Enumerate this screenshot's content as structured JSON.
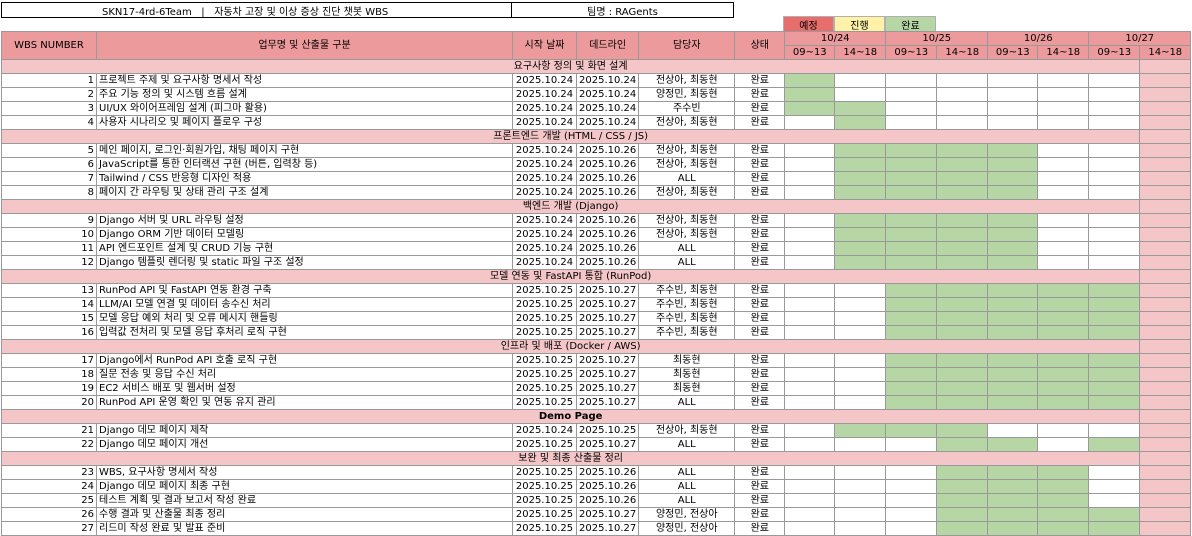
{
  "title": "SKN17-4rd-6Team   |   자동차 고장 및 이상 증상 진단 챗봇 WBS",
  "team": "팀명 : RAGents",
  "legend": [
    {
      "label": "예정",
      "color": "#e86d6d"
    },
    {
      "label": "진행",
      "color": "#fff2a8"
    },
    {
      "label": "완료",
      "color": "#b7d6a6"
    }
  ],
  "headers": {
    "wbs": "WBS NUMBER",
    "task": "업무명 및 산출물 구분",
    "start": "시작 날짜",
    "deadline": "데드라인",
    "owner": "담당자",
    "status": "상태",
    "dates": [
      "10/24",
      "10/25",
      "10/26",
      "10/27"
    ],
    "slots": [
      "09~13",
      "14~18",
      "09~13",
      "14~18",
      "09~13",
      "14~18",
      "09~13",
      "14~18"
    ]
  },
  "colors": {
    "header": "#ec9a9c",
    "section": "#f4c6c7",
    "done": "#b7d6a6"
  },
  "sections": [
    {
      "title": "요구사항 정의 및 화면 설계",
      "rows": [
        {
          "no": "1",
          "task": "프로젝트 주제 및 요구사항 명세서 작성",
          "start": "2025.10.24",
          "end": "2025.10.24",
          "owner": "전상아, 최동현",
          "status": "완료",
          "g": [
            0
          ]
        },
        {
          "no": "2",
          "task": "주요 기능 정의 및 시스템 흐름 설계",
          "start": "2025.10.24",
          "end": "2025.10.24",
          "owner": "양정민, 최동현",
          "status": "완료",
          "g": [
            0
          ]
        },
        {
          "no": "3",
          "task": "UI/UX 와이어프레임 설계 (피그마 활용)",
          "start": "2025.10.24",
          "end": "2025.10.24",
          "owner": "주수빈",
          "status": "완료",
          "g": [
            0,
            1
          ]
        },
        {
          "no": "4",
          "task": "사용자 시나리오 및 페이지 플로우 구성",
          "start": "2025.10.24",
          "end": "2025.10.24",
          "owner": "전상아, 최동현",
          "status": "완료",
          "g": [
            1
          ]
        }
      ]
    },
    {
      "title": "프론트엔드 개발 (HTML / CSS / JS)",
      "rows": [
        {
          "no": "5",
          "task": "메인 페이지, 로그인·회원가입, 채팅 페이지 구현",
          "start": "2025.10.24",
          "end": "2025.10.26",
          "owner": "전상아, 최동현",
          "status": "완료",
          "g": [
            1,
            2,
            3,
            4
          ]
        },
        {
          "no": "6",
          "task": "JavaScript를 통한 인터랙션 구현 (버튼, 입력창 등)",
          "start": "2025.10.24",
          "end": "2025.10.26",
          "owner": "전상아, 최동현",
          "status": "완료",
          "g": [
            1,
            2,
            3,
            4
          ]
        },
        {
          "no": "7",
          "task": "Tailwind / CSS 반응형 디자인 적용",
          "start": "2025.10.24",
          "end": "2025.10.26",
          "owner": "ALL",
          "status": "완료",
          "g": [
            1,
            2,
            3,
            4
          ]
        },
        {
          "no": "8",
          "task": "페이지 간 라우팅 및 상태 관리 구조 설계",
          "start": "2025.10.24",
          "end": "2025.10.26",
          "owner": "전상아, 최동현",
          "status": "완료",
          "g": [
            1,
            2,
            3,
            4
          ]
        }
      ]
    },
    {
      "title": "백엔드 개발 (Django)",
      "rows": [
        {
          "no": "9",
          "task": "Django 서버 및 URL 라우팅 설정",
          "start": "2025.10.24",
          "end": "2025.10.26",
          "owner": "전상아, 최동현",
          "status": "완료",
          "g": [
            1,
            2,
            3,
            4
          ]
        },
        {
          "no": "10",
          "task": "Django ORM 기반 데이터 모델링",
          "start": "2025.10.24",
          "end": "2025.10.26",
          "owner": "전상아, 최동현",
          "status": "완료",
          "g": [
            1,
            2,
            3,
            4
          ]
        },
        {
          "no": "11",
          "task": "API 엔드포인트 설계 및 CRUD 기능 구현",
          "start": "2025.10.24",
          "end": "2025.10.26",
          "owner": "ALL",
          "status": "완료",
          "g": [
            1,
            2,
            3,
            4
          ]
        },
        {
          "no": "12",
          "task": "Django 템플릿 렌더링 및 static 파일 구조 설정",
          "start": "2025.10.24",
          "end": "2025.10.26",
          "owner": "ALL",
          "status": "완료",
          "g": [
            1,
            2,
            3,
            4
          ]
        }
      ]
    },
    {
      "title": "모델 연동 및 FastAPI 통합 (RunPod)",
      "rows": [
        {
          "no": "13",
          "task": "RunPod API 및 FastAPI 연동 환경 구축",
          "start": "2025.10.25",
          "end": "2025.10.27",
          "owner": "주수빈, 최동현",
          "status": "완료",
          "g": [
            2,
            3,
            4,
            5,
            6
          ]
        },
        {
          "no": "14",
          "task": "LLM/AI 모델 연결 및 데이터 송수신 처리",
          "start": "2025.10.25",
          "end": "2025.10.27",
          "owner": "주수빈, 최동현",
          "status": "완료",
          "g": [
            2,
            3,
            4,
            5,
            6
          ]
        },
        {
          "no": "15",
          "task": "모델 응답 예외 처리 및 오류 메시지 핸들링",
          "start": "2025.10.25",
          "end": "2025.10.27",
          "owner": "주수빈, 최동현",
          "status": "완료",
          "g": [
            2,
            3,
            4,
            5,
            6
          ]
        },
        {
          "no": "16",
          "task": "입력값 전처리 및 모델 응답 후처리 로직 구현",
          "start": "2025.10.25",
          "end": "2025.10.27",
          "owner": "주수빈, 최동현",
          "status": "완료",
          "g": [
            2,
            3,
            4,
            5,
            6
          ]
        }
      ]
    },
    {
      "title": "인프라 및 배포 (Docker / AWS)",
      "rows": [
        {
          "no": "17",
          "task": "Django에서 RunPod API 호출 로직 구현",
          "start": "2025.10.25",
          "end": "2025.10.27",
          "owner": "최동현",
          "status": "완료",
          "g": [
            2,
            3,
            4,
            5,
            6
          ]
        },
        {
          "no": "18",
          "task": "질문 전송 및 응답 수신 처리",
          "start": "2025.10.25",
          "end": "2025.10.27",
          "owner": "최동현",
          "status": "완료",
          "g": [
            2,
            3,
            4,
            5,
            6
          ]
        },
        {
          "no": "19",
          "task": "EC2 서비스 배포 및 웹서버 설정",
          "start": "2025.10.25",
          "end": "2025.10.27",
          "owner": "최동현",
          "status": "완료",
          "g": [
            2,
            3,
            4,
            5,
            6
          ]
        },
        {
          "no": "20",
          "task": "RunPod API 운영 확인 및 연동 유지 관리",
          "start": "2025.10.25",
          "end": "2025.10.27",
          "owner": "ALL",
          "status": "완료",
          "g": [
            2,
            3,
            4,
            5,
            6
          ]
        }
      ]
    },
    {
      "title": "Demo Page",
      "bold": true,
      "rows": [
        {
          "no": "21",
          "task": "Django 데모 페이지 제작",
          "start": "2025.10.24",
          "end": "2025.10.25",
          "owner": "전상아, 최동현",
          "status": "완료",
          "g": [
            1,
            2,
            3
          ]
        },
        {
          "no": "22",
          "task": "Django 데모 페이지 개선",
          "start": "2025.10.25",
          "end": "2025.10.27",
          "owner": "ALL",
          "status": "완료",
          "g": [
            3,
            4,
            6
          ]
        }
      ]
    },
    {
      "title": "보완 및 최종 산출물 정리",
      "rows": [
        {
          "no": "23",
          "task": "WBS, 요구사항 명세서 작성",
          "start": "2025.10.25",
          "end": "2025.10.26",
          "owner": "ALL",
          "status": "완료",
          "g": [
            3,
            4,
            5
          ]
        },
        {
          "no": "24",
          "task": "Django 데모 페이지 최종 구현",
          "start": "2025.10.25",
          "end": "2025.10.26",
          "owner": "ALL",
          "status": "완료",
          "g": [
            3,
            4,
            5
          ]
        },
        {
          "no": "25",
          "task": "테스트 계획 및 결과 보고서 작성 완료",
          "start": "2025.10.25",
          "end": "2025.10.26",
          "owner": "ALL",
          "status": "완료",
          "g": [
            3,
            4,
            5
          ]
        },
        {
          "no": "26",
          "task": "수행 결과 및 산출물 최종 정리",
          "start": "2025.10.25",
          "end": "2025.10.27",
          "owner": "양정민, 전상아",
          "status": "완료",
          "g": [
            3,
            4,
            5,
            6
          ]
        },
        {
          "no": "27",
          "task": "리드미 작성 완료 및 발표 준비",
          "start": "2025.10.25",
          "end": "2025.10.27",
          "owner": "양정민, 전상아",
          "status": "완료",
          "g": [
            3,
            4,
            5,
            6
          ]
        }
      ]
    }
  ]
}
